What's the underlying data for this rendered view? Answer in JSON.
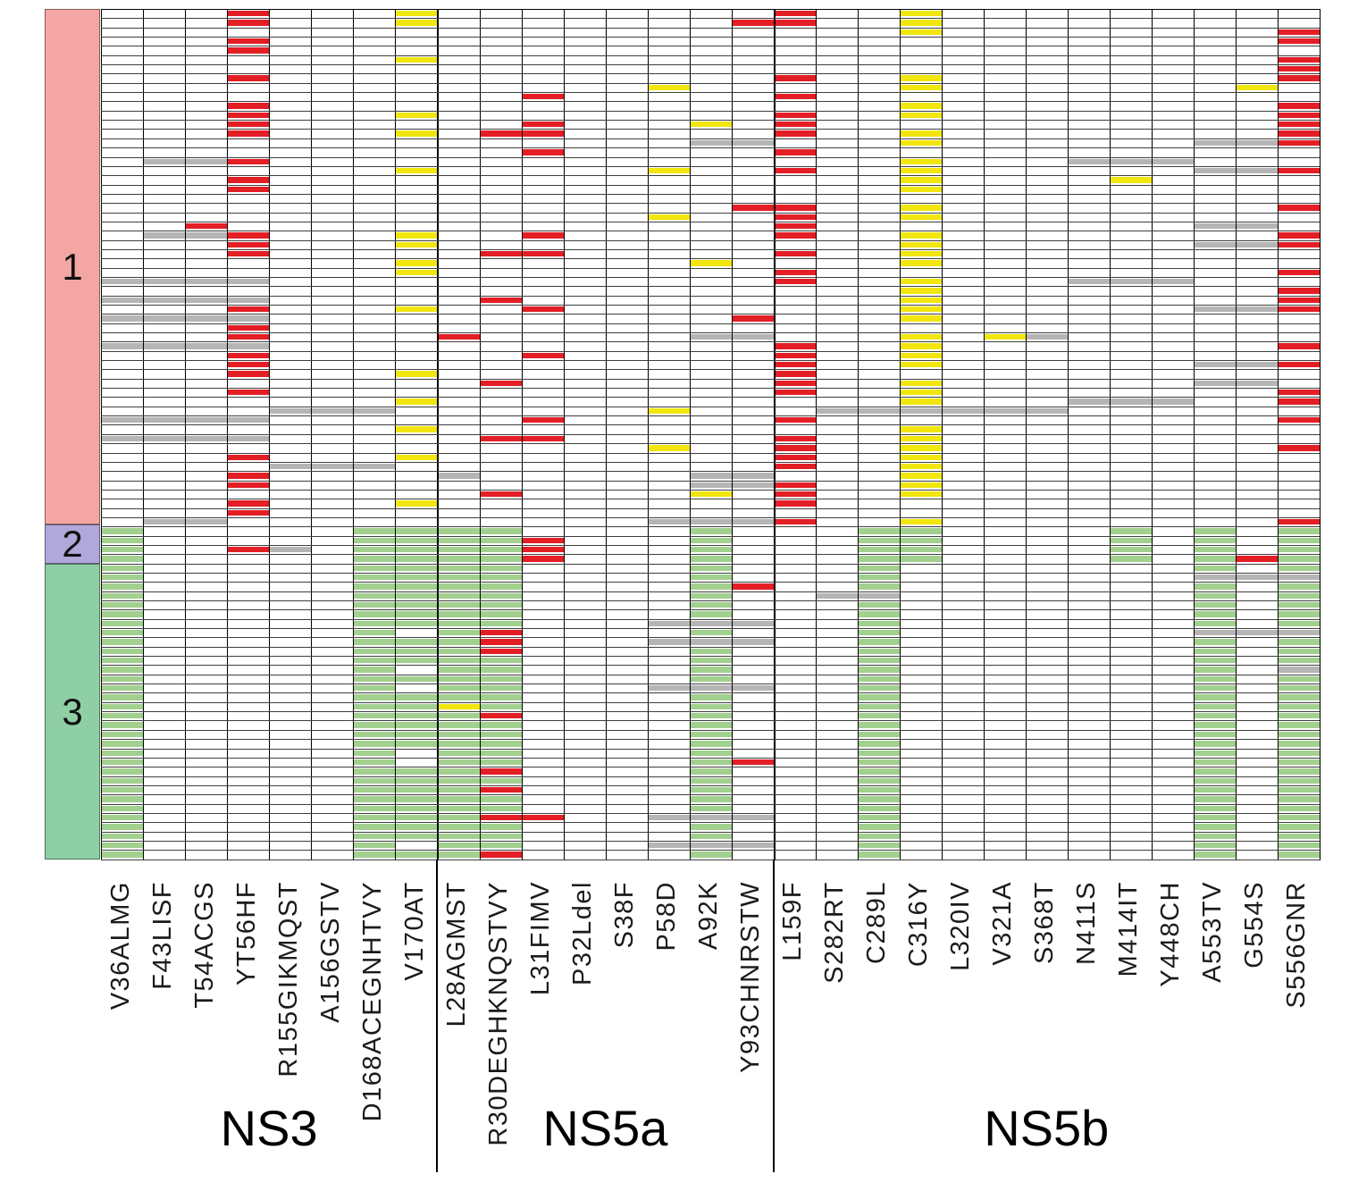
{
  "chart_data": {
    "type": "heatmap",
    "title": "",
    "x_axis_groups": [
      "NS3",
      "NS5a",
      "NS5b"
    ],
    "genes": [
      {
        "name": "NS3",
        "columns": 8
      },
      {
        "name": "NS5a",
        "columns": 8
      },
      {
        "name": "NS5b",
        "columns": 13
      }
    ],
    "gene_boundaries": [
      8,
      16
    ],
    "columns": [
      "V36ALMG",
      "F43LISF",
      "T54ACGS",
      "YT56HF",
      "R155GIKMQST",
      "A156GSTV",
      "D168ACEGNHTVY",
      "V170AT",
      "L28AGMST",
      "R30DEGHKNQSTVY",
      "L31FIMV",
      "P32Ldel",
      "S38F",
      "P58D",
      "A92K",
      "Y93CHNRSTW",
      "L159F",
      "S282RT",
      "C289L",
      "C316Y",
      "L320IV",
      "V321A",
      "S368T",
      "N411S",
      "M414IT",
      "Y448CH",
      "A553TV",
      "G554S",
      "S556GNR"
    ],
    "genotype_groups": [
      {
        "label": "1",
        "rows": 56,
        "band_color": "#f4a6a4"
      },
      {
        "label": "2",
        "rows": 4,
        "band_color": "#b0a8da"
      },
      {
        "label": "3",
        "rows": 32,
        "band_color": "#8fcfa5"
      }
    ],
    "cell_codes": {
      ".": "white/none",
      "R": "red",
      "Y": "yellow",
      "E": "grey",
      "G": "green"
    },
    "palette": {
      "R": "#e41e25",
      "Y": "#f1e60d",
      "E": "#b5b5b5",
      "G": "#a2d08f"
    },
    "grid_line_color": "#3e3e3e",
    "rows": [
      "...R...Y........R..Y.........",
      "...R...Y.......RR..Y.........",
      "...................Y........R",
      "...R........................R",
      "...R.........................",
      ".......Y....................R",
      "............................R",
      "...R............R..Y........R",
      ".............Y.....Y.......Y.",
      "..........R.....R............",
      "...R...............Y........R",
      "...R...Y........R..Y........R",
      "...R......R...Y.R...........R",
      "...R...Y.RR.....R..Y........R",
      "..............EE...Y......EER",
      "..........R.....R............",
      ".EER...............Y...EEE...",
      ".......Y.....Y..R..Y......EER",
      "...R...............Y....Y....",
      "...R...............Y.........",
      ".............................",
      "...............RR..Y........R",
      ".............Y..R..Y.........",
      "..R.............R.........EE.",
      ".EER...Y..R.....R..Y........R",
      "...R...Y...........Y......EER",
      "...R.....RR.....R..Y.........",
      ".......Y......Y....Y.........",
      ".......Y........R...........R",
      "EEEE............R..Y...EEE...",
      "...................Y........R",
      "EEEE.....R.........Y........R",
      "...R...Y..R........Y......EER",
      "EEEE...........R...Y.........",
      "...R.........................",
      "...R....R.....EE...Y.YE......",
      "EEEE............R..Y........R",
      "...R......R.....R..Y.........",
      "...R............R..Y......EER",
      "...R...Y........R............",
      ".........R......R..Y......EE.",
      "...R............R..Y........R",
      ".......Y...........Y...EEE..R",
      "....EEE......Y...EEEEEE......",
      "EEEE......R.....R...........R",
      ".......Y...........Y.........",
      "EEEE.....RR.....R..Y.........",
      ".............Y..R..Y........R",
      "...R...Y........R..Y.........",
      "....EEE.........R..Y.........",
      "...R....E.....EE...Y.........",
      "...R..........EER..Y.........",
      ".........R....Y.R..Y.........",
      "...R...Y........R............",
      "...R.........................",
      ".EE..........EEER..Y........R",
      "G.....GGGG....G...GG....G.G.G",
      "G.....GGGGR...G...GG....G.G.G",
      "G..RE.GGGGR...G...GG....G.G.G",
      "G.....GGGGR...G...GG....G.GRG",
      "G.....GGGG....G...G.......G.G",
      "G.....GGGG....G...G.......EEE",
      "G.....GGGG....GR..G.......G.G",
      "G.....GGGG....G..EE.......G.G",
      "G.....GGGG....G...G.......G.G",
      "G.....GGGG....G...G.......G.G",
      "G.....GGGG...EEE..G.......G.G",
      "G.....G.GR....G...G.......EEE",
      "G.....GGGR...EEE..G.......G.G",
      "G.....GGGR....G...G.......G.G",
      "G.....GGGG....G...G.......G.G",
      "G.....G.GG....G...G.......G.E",
      "G.....GGGG....G...G.......G.G",
      "G.....G.GG...EEE..G.......G.G",
      "G.....GGGG....G...G.......G.G",
      "G.....GGYG....G...G.......G.G",
      "G.....GGGR....G...G.......G.G",
      "G.....GGGG....G...G.......G.G",
      "G.....GGGG....G...G.......G.G",
      "G.....GGGG....G...G.......G.G",
      "G.....G.GG....G...G.......G.G",
      "G.....G.GG....GR..G.......G.G",
      "G.....GGGR....G...G.......G.G",
      "G.....GGGG....G...G.......G.G",
      "G.....GGGR....G...G.......G.G",
      "G.....GGGG....G...G.......G.G",
      "G.....GGGG....G...G.......G.G",
      "G.....GGGRR..EEE..G.......G.G",
      "G.....GGGG....G...G.......G.G",
      "G.....GGGG....G...G.......G.G",
      "G.....G.GG...EEE..G.......G.G",
      "G.....GGGR....G...G.......G.G"
    ]
  }
}
